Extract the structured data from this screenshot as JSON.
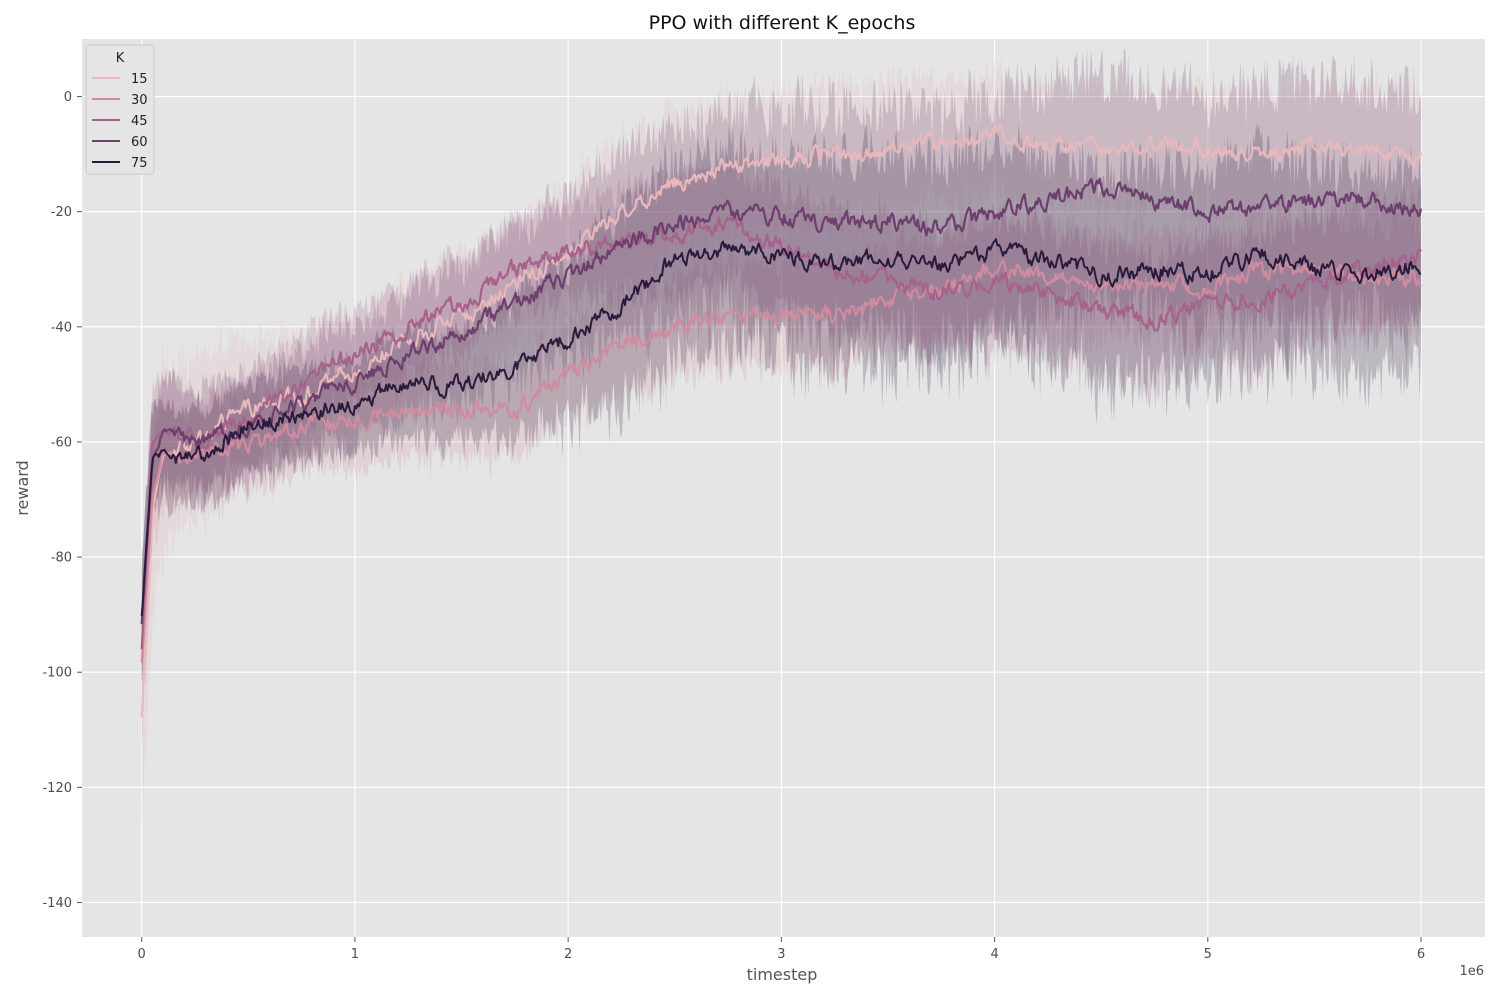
{
  "chart_data": {
    "type": "line",
    "title": "PPO with different K_epochs",
    "xlabel": "timestep",
    "ylabel": "reward",
    "x_offset_label": "1e6",
    "x_scale": 1000000,
    "xlim": [
      -280000,
      6300000
    ],
    "ylim": [
      -146,
      10
    ],
    "xticks": [
      0,
      1000000,
      2000000,
      3000000,
      4000000,
      5000000,
      6000000
    ],
    "xtick_labels": [
      "0",
      "1",
      "2",
      "3",
      "4",
      "5",
      "6"
    ],
    "yticks": [
      0,
      -20,
      -40,
      -60,
      -80,
      -100,
      -120,
      -140
    ],
    "ytick_labels": [
      "0",
      "-20",
      "-40",
      "-60",
      "-80",
      "-100",
      "-120",
      "-140"
    ],
    "grid": true,
    "legend": {
      "title": "K",
      "placement": "top-left"
    },
    "series": [
      {
        "name": "15",
        "color": "#e9b8bc",
        "x": [
          0,
          50000,
          100000,
          250000,
          500000,
          750000,
          1000000,
          1250000,
          1500000,
          1750000,
          2000000,
          2250000,
          2500000,
          2750000,
          3000000,
          3250000,
          3500000,
          3750000,
          4000000,
          4250000,
          4500000,
          4750000,
          5000000,
          5250000,
          5500000,
          5750000,
          6000000
        ],
        "y": [
          -108,
          -72,
          -62,
          -60,
          -54,
          -52,
          -48,
          -42,
          -38,
          -33,
          -27,
          -20,
          -15,
          -12,
          -11,
          -10,
          -9,
          -8,
          -7,
          -8,
          -9,
          -8,
          -9,
          -10,
          -9,
          -9,
          -11
        ],
        "band": [
          20,
          18,
          16,
          14,
          12,
          11,
          10,
          10,
          10,
          11,
          12,
          13,
          13,
          12,
          12,
          12,
          12,
          11,
          10,
          10,
          10,
          10,
          11,
          11,
          11,
          11,
          12
        ]
      },
      {
        "name": "30",
        "color": "#d08ba0",
        "x": [
          0,
          50000,
          100000,
          250000,
          500000,
          750000,
          1000000,
          1250000,
          1500000,
          1750000,
          2000000,
          2250000,
          2500000,
          2750000,
          3000000,
          3250000,
          3500000,
          3750000,
          4000000,
          4250000,
          4500000,
          4750000,
          5000000,
          5250000,
          5500000,
          5750000,
          6000000
        ],
        "y": [
          -98,
          -70,
          -62,
          -63,
          -60,
          -58,
          -56,
          -55,
          -54,
          -55,
          -48,
          -43,
          -40,
          -38,
          -38,
          -38,
          -35,
          -33,
          -30,
          -31,
          -33,
          -32,
          -34,
          -30,
          -30,
          -31,
          -32
        ],
        "band": [
          12,
          10,
          9,
          8,
          8,
          8,
          8,
          8,
          8,
          8,
          8,
          9,
          9,
          9,
          9,
          9,
          9,
          9,
          9,
          9,
          9,
          9,
          9,
          9,
          9,
          9,
          9
        ]
      },
      {
        "name": "45",
        "color": "#a6628b",
        "x": [
          0,
          50000,
          100000,
          250000,
          500000,
          750000,
          1000000,
          1250000,
          1500000,
          1750000,
          2000000,
          2250000,
          2500000,
          2750000,
          3000000,
          3250000,
          3500000,
          3750000,
          4000000,
          4250000,
          4500000,
          4750000,
          5000000,
          5250000,
          5500000,
          5750000,
          6000000
        ],
        "y": [
          -96,
          -60,
          -58,
          -60,
          -56,
          -50,
          -45,
          -40,
          -36,
          -30,
          -27,
          -25,
          -24,
          -22,
          -26,
          -30,
          -32,
          -34,
          -32,
          -34,
          -37,
          -39,
          -36,
          -35,
          -32,
          -30,
          -28
        ],
        "band": [
          12,
          10,
          9,
          8,
          8,
          8,
          8,
          8,
          8,
          8,
          8,
          9,
          10,
          10,
          10,
          11,
          11,
          11,
          11,
          11,
          11,
          11,
          11,
          11,
          11,
          11,
          11
        ]
      },
      {
        "name": "60",
        "color": "#6d3f6e",
        "x": [
          0,
          50000,
          100000,
          250000,
          500000,
          750000,
          1000000,
          1250000,
          1500000,
          1750000,
          2000000,
          2250000,
          2500000,
          2750000,
          3000000,
          3250000,
          3500000,
          3750000,
          4000000,
          4250000,
          4500000,
          4750000,
          5000000,
          5250000,
          5500000,
          5750000,
          6000000
        ],
        "y": [
          -92,
          -64,
          -58,
          -60,
          -58,
          -53,
          -50,
          -45,
          -41,
          -36,
          -31,
          -26,
          -22,
          -20,
          -21,
          -22,
          -22,
          -23,
          -20,
          -18,
          -16,
          -18,
          -20,
          -19,
          -18,
          -18,
          -20
        ],
        "band": [
          12,
          10,
          9,
          9,
          9,
          9,
          10,
          11,
          12,
          13,
          14,
          16,
          17,
          18,
          19,
          20,
          20,
          20,
          20,
          20,
          20,
          20,
          21,
          20,
          20,
          20,
          20
        ]
      },
      {
        "name": "75",
        "color": "#2a1b3d",
        "x": [
          0,
          50000,
          100000,
          250000,
          500000,
          750000,
          1000000,
          1250000,
          1500000,
          1750000,
          2000000,
          2250000,
          2500000,
          2750000,
          3000000,
          3250000,
          3500000,
          3750000,
          4000000,
          4250000,
          4500000,
          4750000,
          5000000,
          5250000,
          5500000,
          5750000,
          6000000
        ],
        "y": [
          -90,
          -63,
          -62,
          -63,
          -57,
          -55,
          -53,
          -50,
          -50,
          -47,
          -42,
          -36,
          -28,
          -26,
          -28,
          -29,
          -28,
          -29,
          -27,
          -28,
          -31,
          -30,
          -31,
          -27,
          -30,
          -31,
          -29
        ],
        "band": [
          10,
          9,
          8,
          8,
          8,
          8,
          8,
          9,
          10,
          12,
          14,
          16,
          17,
          17,
          17,
          18,
          18,
          18,
          18,
          18,
          18,
          18,
          18,
          18,
          18,
          18,
          18
        ]
      }
    ]
  }
}
